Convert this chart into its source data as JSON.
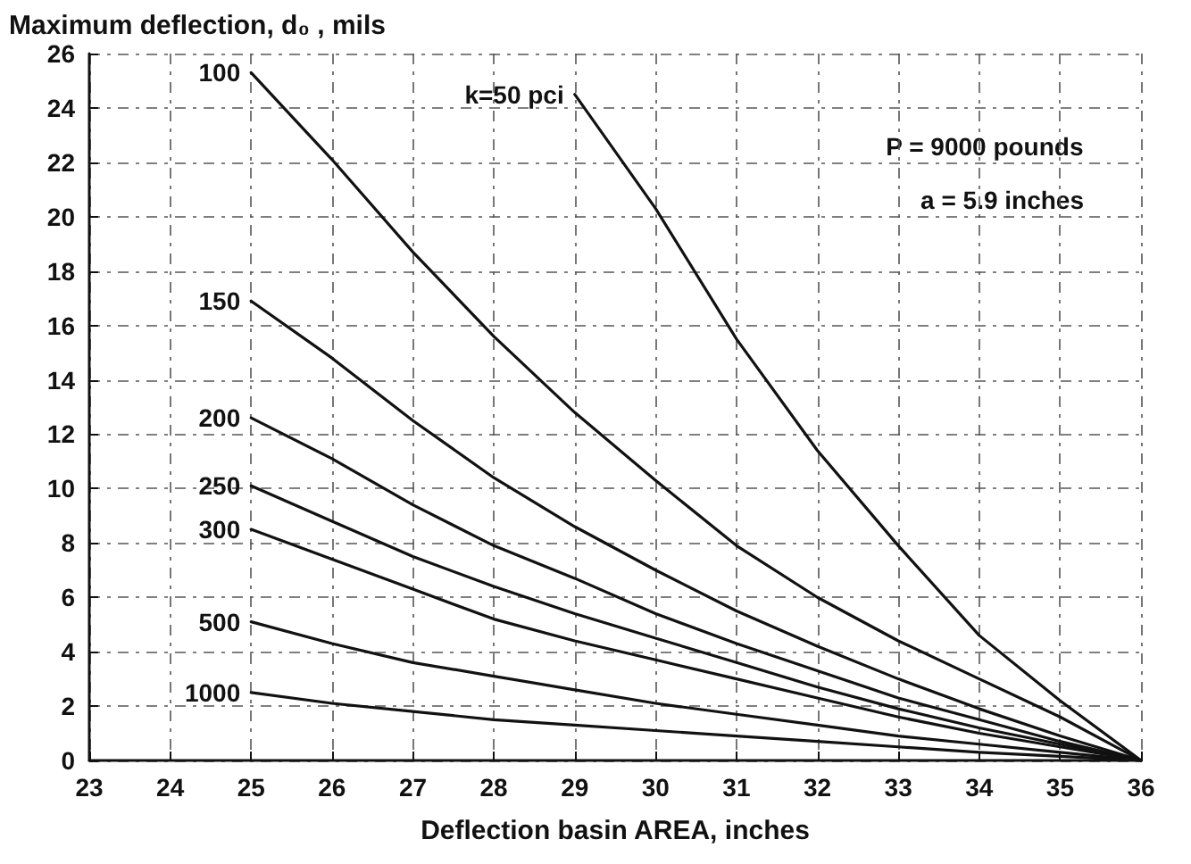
{
  "chart_data": {
    "type": "line",
    "xlabel": "Deflection basin AREA, inches",
    "ylabel": "Maximum deflection, d₀ , mils",
    "annotations": [
      "P = 9000 pounds",
      "a = 5.9 inches"
    ],
    "xlim": [
      23,
      36
    ],
    "xticks": [
      23,
      24,
      25,
      26,
      27,
      28,
      29,
      30,
      31,
      32,
      33,
      34,
      35,
      36
    ],
    "ylim": [
      0,
      26
    ],
    "yticks": [
      0,
      2,
      4,
      6,
      8,
      10,
      12,
      14,
      16,
      18,
      20,
      22,
      24,
      26
    ],
    "grid": true,
    "legend": false,
    "marker": "none",
    "line_style": "solid",
    "series": [
      {
        "name": "k=50 pci",
        "color": "#111111",
        "x": [
          29,
          30,
          31,
          32,
          33,
          34,
          35,
          36
        ],
        "values": [
          24.5,
          20.3,
          15.5,
          11.4,
          7.9,
          4.6,
          2.2,
          0
        ]
      },
      {
        "name": "100",
        "color": "#111111",
        "x": [
          25,
          26,
          27,
          28,
          29,
          30,
          31,
          32,
          33,
          34,
          35,
          36
        ],
        "values": [
          25.3,
          22.1,
          18.7,
          15.6,
          12.8,
          10.3,
          7.9,
          6.0,
          4.4,
          3.0,
          1.6,
          0
        ]
      },
      {
        "name": "150",
        "color": "#111111",
        "x": [
          25,
          26,
          27,
          28,
          29,
          30,
          31,
          32,
          33,
          34,
          35,
          36
        ],
        "values": [
          16.9,
          14.8,
          12.5,
          10.4,
          8.6,
          7.0,
          5.5,
          4.2,
          3.0,
          1.9,
          0.9,
          0
        ]
      },
      {
        "name": "200",
        "color": "#111111",
        "x": [
          25,
          26,
          27,
          28,
          29,
          30,
          31,
          32,
          33,
          34,
          35,
          36
        ],
        "values": [
          12.6,
          11.1,
          9.4,
          7.9,
          6.7,
          5.4,
          4.3,
          3.3,
          2.3,
          1.5,
          0.7,
          0
        ]
      },
      {
        "name": "250",
        "color": "#111111",
        "x": [
          25,
          26,
          27,
          28,
          29,
          30,
          31,
          32,
          33,
          34,
          35,
          36
        ],
        "values": [
          10.1,
          8.8,
          7.5,
          6.4,
          5.4,
          4.5,
          3.6,
          2.7,
          1.9,
          1.2,
          0.6,
          0
        ]
      },
      {
        "name": "300",
        "color": "#111111",
        "x": [
          25,
          26,
          27,
          28,
          29,
          30,
          31,
          32,
          33,
          34,
          35,
          36
        ],
        "values": [
          8.5,
          7.4,
          6.3,
          5.2,
          4.4,
          3.7,
          3.0,
          2.3,
          1.6,
          1.0,
          0.5,
          0
        ]
      },
      {
        "name": "500",
        "color": "#111111",
        "x": [
          25,
          26,
          27,
          28,
          29,
          30,
          31,
          32,
          33,
          34,
          35,
          36
        ],
        "values": [
          5.1,
          4.3,
          3.6,
          3.1,
          2.6,
          2.1,
          1.7,
          1.3,
          0.9,
          0.6,
          0.3,
          0
        ]
      },
      {
        "name": "1000",
        "color": "#111111",
        "x": [
          25,
          26,
          27,
          28,
          29,
          30,
          31,
          32,
          33,
          34,
          35,
          36
        ],
        "values": [
          2.5,
          2.1,
          1.8,
          1.5,
          1.3,
          1.1,
          0.9,
          0.7,
          0.5,
          0.3,
          0.15,
          0
        ]
      }
    ]
  }
}
